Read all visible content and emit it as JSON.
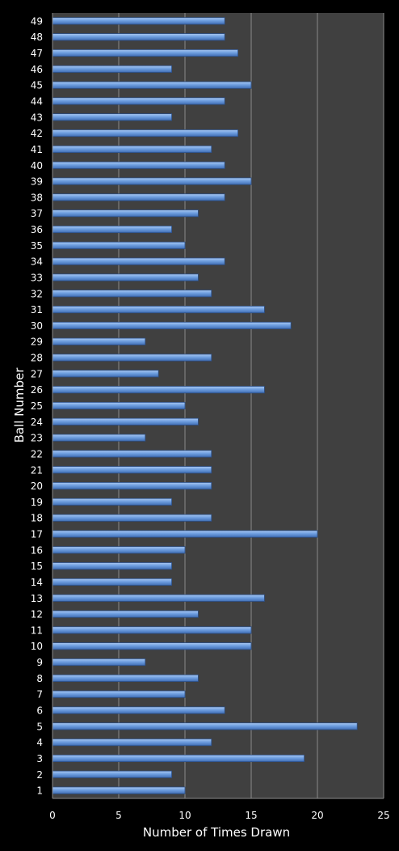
{
  "chart_data": {
    "type": "bar",
    "orientation": "horizontal",
    "title": "",
    "xlabel": "Number of Times Drawn",
    "ylabel": "Ball Number",
    "xlim": [
      0,
      25
    ],
    "xticks": [
      0,
      5,
      10,
      15,
      20,
      25
    ],
    "grid": "vertical",
    "legend": "none",
    "colors": {
      "background": "#000000",
      "plot_area": "#404040",
      "bar": "#6f9fe0",
      "bar_edge": "#2c4f86",
      "grid": "#8a8a8a",
      "text": "#ffffff"
    },
    "categories": [
      "1",
      "2",
      "3",
      "4",
      "5",
      "6",
      "7",
      "8",
      "9",
      "10",
      "11",
      "12",
      "13",
      "14",
      "15",
      "16",
      "17",
      "18",
      "19",
      "20",
      "21",
      "22",
      "23",
      "24",
      "25",
      "26",
      "27",
      "28",
      "29",
      "30",
      "31",
      "32",
      "33",
      "34",
      "35",
      "36",
      "37",
      "38",
      "39",
      "40",
      "41",
      "42",
      "43",
      "44",
      "45",
      "46",
      "47",
      "48",
      "49"
    ],
    "values": [
      10,
      9,
      19,
      12,
      23,
      13,
      10,
      11,
      7,
      15,
      15,
      11,
      16,
      9,
      9,
      10,
      20,
      12,
      9,
      12,
      12,
      12,
      7,
      11,
      10,
      16,
      8,
      12,
      7,
      18,
      16,
      12,
      11,
      13,
      10,
      9,
      11,
      13,
      15,
      13,
      12,
      14,
      9,
      13,
      15,
      9,
      14,
      13,
      13
    ]
  }
}
